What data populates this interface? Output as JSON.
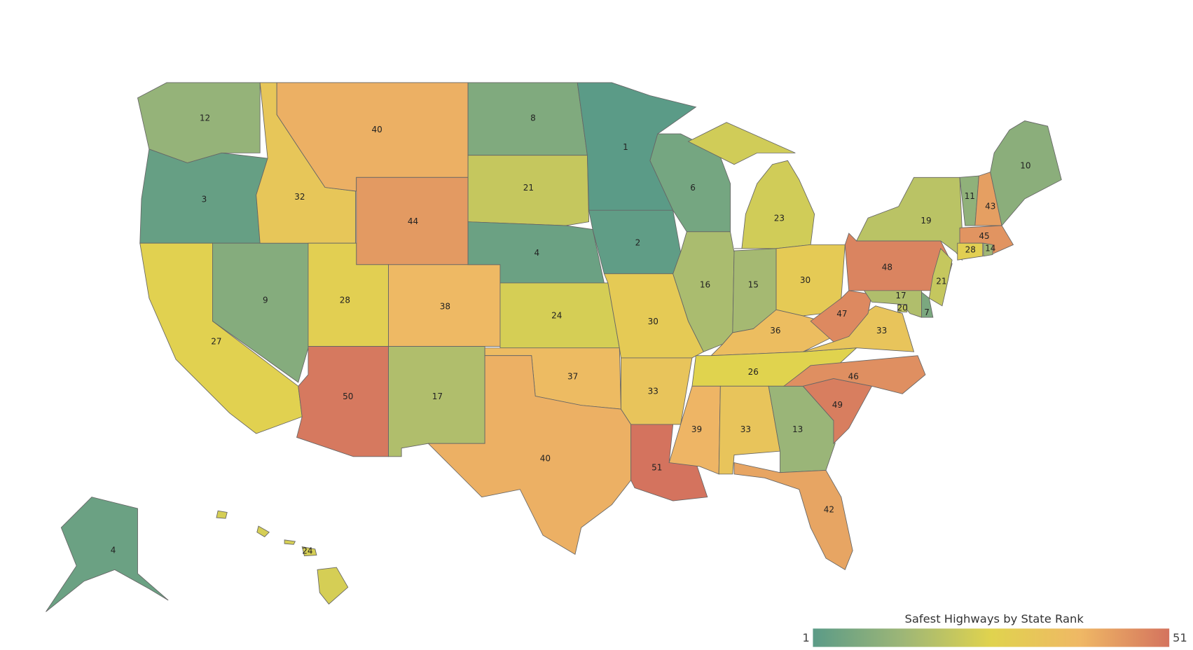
{
  "chart_data": {
    "type": "choropleth",
    "title": "Safest Highways by State Rank",
    "values": [
      12,
      3,
      27,
      9,
      32,
      40,
      44,
      28,
      38,
      50,
      17,
      8,
      21,
      4,
      24,
      37,
      40,
      1,
      2,
      30,
      33,
      51,
      6,
      16,
      15,
      23,
      30,
      36,
      26,
      39,
      33,
      13,
      42,
      49,
      46,
      33,
      47,
      48,
      19,
      21,
      7,
      17,
      20,
      11,
      43,
      10,
      45,
      28,
      14,
      4,
      24
    ],
    "clim": [
      1,
      51
    ],
    "colors": [
      "#5b9b87",
      "#9db677",
      "#e0d34e",
      "#efb865",
      "#d4735e"
    ]
  }
}
